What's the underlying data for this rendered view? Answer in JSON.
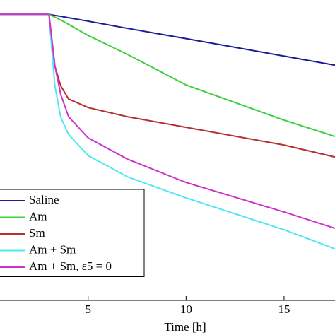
{
  "chart_data": {
    "type": "line",
    "xlabel": "Time [h]",
    "x": [
      0.5,
      3,
      3.3,
      3.6,
      4,
      5,
      7,
      10,
      15,
      17.6
    ],
    "series": [
      {
        "name": "Saline",
        "color": "#1c1c96",
        "values": [
          1,
          1,
          0.996,
          0.993,
          0.988,
          0.976,
          0.951,
          0.915,
          0.854,
          0.822
        ]
      },
      {
        "name": "Am",
        "color": "#3ecf3e",
        "values": [
          1,
          1,
          0.99,
          0.98,
          0.965,
          0.926,
          0.86,
          0.753,
          0.63,
          0.573
        ]
      },
      {
        "name": "Sm",
        "color": "#b5302f",
        "values": [
          1,
          1,
          0.82,
          0.75,
          0.704,
          0.674,
          0.642,
          0.605,
          0.543,
          0.501
        ]
      },
      {
        "name": "Am + Sm",
        "color": "#4fe8ee",
        "values": [
          1,
          1,
          0.75,
          0.64,
          0.58,
          0.506,
          0.432,
          0.358,
          0.247,
          0.18
        ]
      },
      {
        "name": "Am + Sm, ε5 = 0",
        "color": "#cc33cc",
        "values": [
          1,
          1,
          0.82,
          0.72,
          0.642,
          0.568,
          0.494,
          0.412,
          0.309,
          0.252
        ]
      }
    ],
    "xlim": [
      0.5,
      17.6
    ],
    "ylim": [
      0,
      1.05
    ],
    "xticks": [
      5,
      10,
      15
    ],
    "legend": "lower left"
  }
}
